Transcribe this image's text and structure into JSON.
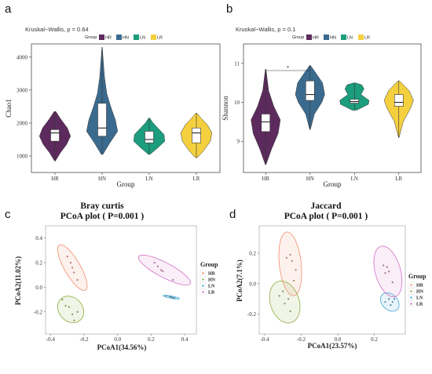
{
  "chart_data": [
    {
      "panel": "a",
      "type": "violin",
      "subtitle": "Kruskal−Wallis, p = 0.64",
      "legend_title": "Group",
      "xlabel": "Group",
      "ylabel": "Chao1",
      "categories": [
        "HR",
        "HN",
        "LN",
        "LR"
      ],
      "colors": [
        "#5d2a5e",
        "#3a6b8f",
        "#1c9d7d",
        "#f4d03f"
      ],
      "yticks": [
        1000,
        2000,
        3000,
        4000
      ],
      "ylim": [
        500,
        4400
      ],
      "legend_position": "top",
      "series": [
        {
          "name": "HR",
          "min": 850,
          "q1": 1450,
          "median": 1700,
          "q3": 1800,
          "max": 2350,
          "violin": [
            [
              850,
              0.03
            ],
            [
              1100,
              0.35
            ],
            [
              1350,
              0.75
            ],
            [
              1600,
              1.0
            ],
            [
              1850,
              0.8
            ],
            [
              2100,
              0.4
            ],
            [
              2350,
              0.05
            ]
          ]
        },
        {
          "name": "HN",
          "min": 1050,
          "q1": 1600,
          "median": 1850,
          "q3": 2600,
          "max": 4300,
          "violin": [
            [
              1050,
              0.05
            ],
            [
              1400,
              0.5
            ],
            [
              1750,
              1.0
            ],
            [
              2100,
              0.85
            ],
            [
              2500,
              0.55
            ],
            [
              2900,
              0.3
            ],
            [
              3400,
              0.15
            ],
            [
              3900,
              0.07
            ],
            [
              4300,
              0.01
            ]
          ]
        },
        {
          "name": "LN",
          "min": 1050,
          "q1": 1400,
          "median": 1500,
          "q3": 1750,
          "max": 2150,
          "violin": [
            [
              1050,
              0.05
            ],
            [
              1250,
              0.55
            ],
            [
              1450,
              1.0
            ],
            [
              1650,
              0.95
            ],
            [
              1850,
              0.55
            ],
            [
              2000,
              0.25
            ],
            [
              2150,
              0.03
            ]
          ]
        },
        {
          "name": "LR",
          "min": 950,
          "q1": 1400,
          "median": 1700,
          "q3": 1850,
          "max": 2300,
          "violin": [
            [
              950,
              0.05
            ],
            [
              1150,
              0.45
            ],
            [
              1450,
              0.9
            ],
            [
              1700,
              1.0
            ],
            [
              1950,
              0.7
            ],
            [
              2150,
              0.3
            ],
            [
              2300,
              0.03
            ]
          ]
        }
      ]
    },
    {
      "panel": "b",
      "type": "violin",
      "subtitle": "Kruskal−Wallis, p = 0.1",
      "legend_title": "Group",
      "xlabel": "Group",
      "ylabel": "Shannon",
      "categories": [
        "HR",
        "HN",
        "LN",
        "LR"
      ],
      "colors": [
        "#5d2a5e",
        "#3a6b8f",
        "#1c9d7d",
        "#f4d03f"
      ],
      "yticks": [
        9,
        10,
        11
      ],
      "ylim": [
        8.2,
        11.5
      ],
      "legend_position": "top",
      "significance": {
        "from": "HR",
        "to": "HN",
        "label": "*"
      },
      "series": [
        {
          "name": "HR",
          "min": 8.4,
          "q1": 9.25,
          "median": 9.5,
          "q3": 9.7,
          "max": 10.85,
          "violin": [
            [
              8.4,
              0.02
            ],
            [
              8.8,
              0.4
            ],
            [
              9.2,
              0.85
            ],
            [
              9.55,
              1.0
            ],
            [
              9.9,
              0.55
            ],
            [
              10.3,
              0.2
            ],
            [
              10.85,
              0.02
            ]
          ]
        },
        {
          "name": "HN",
          "min": 9.3,
          "q1": 10.05,
          "median": 10.2,
          "q3": 10.55,
          "max": 10.95,
          "violin": [
            [
              9.3,
              0.02
            ],
            [
              9.7,
              0.3
            ],
            [
              10.0,
              0.8
            ],
            [
              10.2,
              1.0
            ],
            [
              10.5,
              0.85
            ],
            [
              10.75,
              0.4
            ],
            [
              10.95,
              0.02
            ]
          ]
        },
        {
          "name": "LN",
          "min": 9.8,
          "q1": 9.98,
          "median": 10.02,
          "q3": 10.08,
          "max": 10.5,
          "violin": [
            [
              9.8,
              0.15
            ],
            [
              9.95,
              0.95
            ],
            [
              10.05,
              1.0
            ],
            [
              10.2,
              0.45
            ],
            [
              10.35,
              0.65
            ],
            [
              10.45,
              0.5
            ],
            [
              10.5,
              0.05
            ]
          ]
        },
        {
          "name": "LR",
          "min": 9.1,
          "q1": 9.9,
          "median": 10.0,
          "q3": 10.2,
          "max": 10.55,
          "violin": [
            [
              9.1,
              0.02
            ],
            [
              9.5,
              0.3
            ],
            [
              9.85,
              0.8
            ],
            [
              10.05,
              1.0
            ],
            [
              10.3,
              0.7
            ],
            [
              10.55,
              0.05
            ]
          ]
        }
      ]
    },
    {
      "panel": "c",
      "type": "scatter",
      "title": "Bray curtis",
      "subtitle": "PCoA plot ( P=0.001 )",
      "xlabel": "PCoA1(34.56%)",
      "ylabel": "PCoA2(11.02%)",
      "xticks": [
        -0.4,
        -0.2,
        0.0,
        0.2,
        0.4
      ],
      "yticks": [
        -0.2,
        0.0,
        0.2,
        0.4
      ],
      "xlim": [
        -0.43,
        0.47
      ],
      "ylim": [
        -0.38,
        0.5
      ],
      "legend_title": "Group",
      "legend_position": "right",
      "series": [
        {
          "name": "HR",
          "color": "#f28e6b",
          "points": [
            [
              -0.3,
              0.25
            ],
            [
              -0.28,
              0.2
            ],
            [
              -0.27,
              0.16
            ],
            [
              -0.26,
              0.12
            ],
            [
              -0.24,
              0.06
            ]
          ],
          "ellipse": {
            "cx": -0.27,
            "cy": 0.16,
            "rx": 0.2,
            "ry": 0.05,
            "angle_deg": -68
          }
        },
        {
          "name": "HN",
          "color": "#8fae3c",
          "points": [
            [
              -0.33,
              -0.1
            ],
            [
              -0.31,
              -0.15
            ],
            [
              -0.29,
              -0.16
            ],
            [
              -0.27,
              -0.22
            ],
            [
              -0.26,
              -0.27
            ],
            [
              -0.24,
              -0.2
            ]
          ],
          "ellipse": {
            "cx": -0.28,
            "cy": -0.18,
            "rx": 0.11,
            "ry": 0.075,
            "angle_deg": -75
          }
        },
        {
          "name": "LN",
          "color": "#3fa7d6",
          "points": [
            [
              0.29,
              -0.07
            ],
            [
              0.31,
              -0.075
            ],
            [
              0.32,
              -0.08
            ],
            [
              0.33,
              -0.085
            ],
            [
              0.34,
              -0.088
            ]
          ],
          "ellipse": {
            "cx": 0.32,
            "cy": -0.08,
            "rx": 0.05,
            "ry": 0.009,
            "angle_deg": -14
          }
        },
        {
          "name": "LR",
          "color": "#d270c4",
          "points": [
            [
              0.22,
              0.2
            ],
            [
              0.24,
              0.17
            ],
            [
              0.26,
              0.14
            ],
            [
              0.27,
              0.13
            ],
            [
              0.33,
              0.06
            ]
          ],
          "ellipse": {
            "cx": 0.28,
            "cy": 0.14,
            "rx": 0.19,
            "ry": 0.055,
            "angle_deg": -37
          }
        }
      ]
    },
    {
      "panel": "d",
      "type": "scatter",
      "title": "Jaccard",
      "subtitle": "PCoA plot ( P=0.001 )",
      "xlabel": "PCoA1(23.57%)",
      "ylabel": "PCoA2(7.1%)",
      "xticks": [
        -0.4,
        -0.2,
        0.0,
        0.2
      ],
      "yticks": [
        -0.2,
        0.0,
        0.2
      ],
      "xlim": [
        -0.43,
        0.37
      ],
      "ylim": [
        -0.33,
        0.38
      ],
      "legend_title": "Group",
      "legend_position": "right",
      "series": [
        {
          "name": "HR",
          "color": "#f28e6b",
          "points": [
            [
              -0.28,
              0.17
            ],
            [
              -0.26,
              0.19
            ],
            [
              -0.25,
              0.15
            ],
            [
              -0.23,
              0.09
            ],
            [
              -0.24,
              0.02
            ]
          ],
          "ellipse": {
            "cx": -0.26,
            "cy": 0.13,
            "rx": 0.21,
            "ry": 0.06,
            "angle_deg": -85
          }
        },
        {
          "name": "HN",
          "color": "#8fae3c",
          "points": [
            [
              -0.32,
              -0.08
            ],
            [
              -0.3,
              -0.05
            ],
            [
              -0.29,
              -0.13
            ],
            [
              -0.27,
              -0.1
            ],
            [
              -0.26,
              -0.18
            ]
          ],
          "ellipse": {
            "cx": -0.29,
            "cy": -0.12,
            "rx": 0.14,
            "ry": 0.08,
            "angle_deg": -78
          }
        },
        {
          "name": "LN",
          "color": "#3fa7d6",
          "points": [
            [
              0.26,
              -0.12
            ],
            [
              0.28,
              -0.1
            ],
            [
              0.29,
              -0.14
            ],
            [
              0.3,
              -0.12
            ],
            [
              0.31,
              -0.1
            ]
          ],
          "ellipse": {
            "cx": 0.285,
            "cy": -0.12,
            "rx": 0.065,
            "ry": 0.045,
            "angle_deg": -60
          }
        },
        {
          "name": "LR",
          "color": "#d270c4",
          "points": [
            [
              0.25,
              0.12
            ],
            [
              0.26,
              0.07
            ],
            [
              0.27,
              0.11
            ],
            [
              0.28,
              0.08
            ],
            [
              0.3,
              0.01
            ]
          ],
          "ellipse": {
            "cx": 0.275,
            "cy": 0.08,
            "rx": 0.17,
            "ry": 0.07,
            "angle_deg": -78
          }
        }
      ]
    }
  ],
  "panels": {
    "a": "a",
    "b": "b",
    "c": "c",
    "d": "d"
  }
}
